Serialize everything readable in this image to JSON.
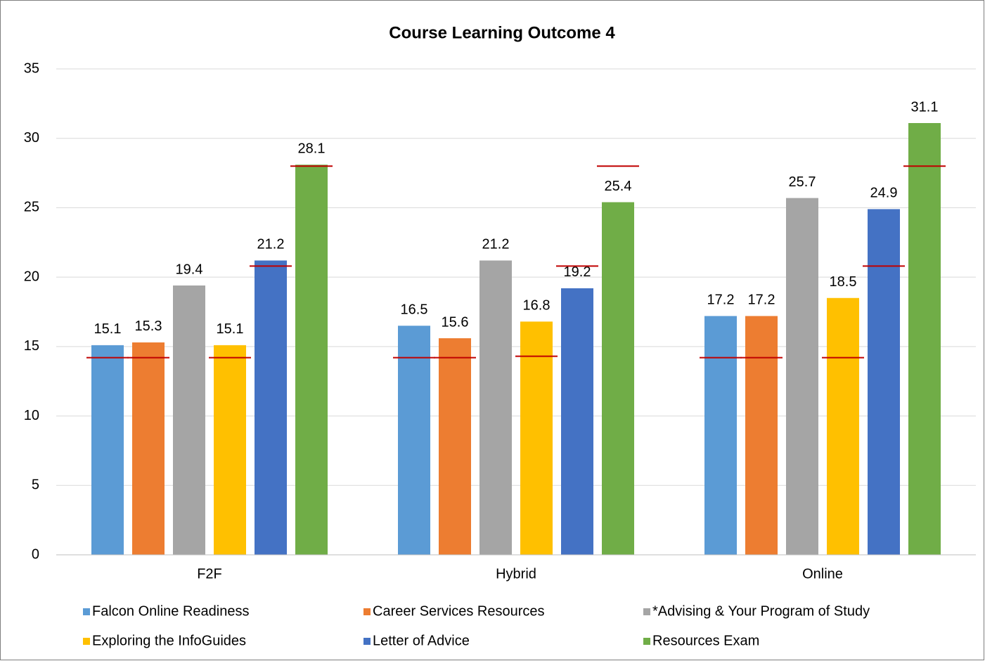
{
  "chart_data": {
    "type": "bar",
    "title": "Course Learning Outcome 4",
    "categories": [
      "F2F",
      "Hybrid",
      "Online"
    ],
    "series": [
      {
        "name": "Falcon Online Readiness",
        "color": "#5b9bd5",
        "values": [
          15.1,
          16.5,
          17.2
        ],
        "targets": [
          14.2,
          14.2,
          14.2
        ]
      },
      {
        "name": "Career Services Resources",
        "color": "#ed7d31",
        "values": [
          15.3,
          15.6,
          17.2
        ],
        "targets": [
          14.2,
          14.2,
          14.2
        ]
      },
      {
        "name": "*Advising & Your Program of Study",
        "color": "#a5a5a5",
        "values": [
          19.4,
          21.2,
          25.7
        ],
        "targets": [
          null,
          null,
          null
        ]
      },
      {
        "name": "Exploring the InfoGuides",
        "color": "#ffc000",
        "values": [
          15.1,
          16.8,
          18.5
        ],
        "targets": [
          14.2,
          14.3,
          14.2
        ]
      },
      {
        "name": "Letter of Advice",
        "color": "#4472c4",
        "values": [
          21.2,
          19.2,
          24.9
        ],
        "targets": [
          20.8,
          20.8,
          20.8
        ]
      },
      {
        "name": "Resources Exam",
        "color": "#70ad47",
        "values": [
          28.1,
          25.4,
          31.1
        ],
        "targets": [
          28.0,
          28.0,
          28.0
        ]
      }
    ],
    "target_color": "#c00000",
    "ylim": [
      0,
      35
    ],
    "yticks": [
      0,
      5,
      10,
      15,
      20,
      25,
      30,
      35
    ],
    "grid": true
  }
}
